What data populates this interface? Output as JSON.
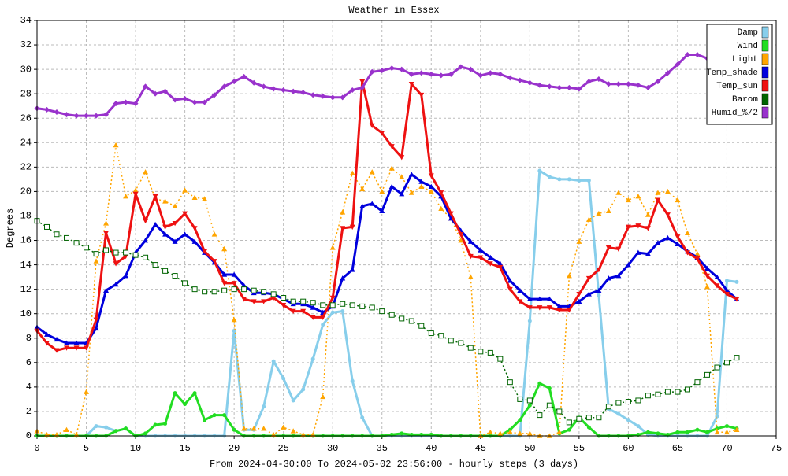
{
  "chart_data": {
    "type": "line",
    "title": "Weather in Essex",
    "x_label": "From 2024-04-30:00 To 2024-05-02 23:56:00 - hourly steps (3 days)",
    "y_label": "Degrees",
    "x": [
      0,
      1,
      2,
      3,
      4,
      5,
      6,
      7,
      8,
      9,
      10,
      11,
      12,
      13,
      14,
      15,
      16,
      17,
      18,
      19,
      20,
      21,
      22,
      23,
      24,
      25,
      26,
      27,
      28,
      29,
      30,
      31,
      32,
      33,
      34,
      35,
      36,
      37,
      38,
      39,
      40,
      41,
      42,
      43,
      44,
      45,
      46,
      47,
      48,
      49,
      50,
      51,
      52,
      53,
      54,
      55,
      56,
      57,
      58,
      59,
      60,
      61,
      62,
      63,
      64,
      65,
      66,
      67,
      68,
      69,
      70,
      71
    ],
    "xlim": [
      0,
      75
    ],
    "xticks": [
      0,
      5,
      10,
      15,
      20,
      25,
      30,
      35,
      40,
      45,
      50,
      55,
      60,
      65,
      70,
      75
    ],
    "ylim": [
      0,
      34
    ],
    "yticks": [
      0,
      2,
      4,
      6,
      8,
      10,
      12,
      14,
      16,
      18,
      20,
      22,
      24,
      26,
      28,
      30,
      32,
      34
    ],
    "grid": true,
    "legend": "top-right",
    "series": [
      {
        "name": "Damp",
        "color": "#87ceeb",
        "values": [
          0,
          0,
          0,
          0,
          0,
          0,
          0.8,
          0.7,
          0.4,
          0.6,
          0,
          0,
          0,
          0,
          0,
          0,
          0,
          0,
          0,
          0,
          8.6,
          0.5,
          0.5,
          2.4,
          6.1,
          4.7,
          2.9,
          3.8,
          6.3,
          9.1,
          10.1,
          10.2,
          4.5,
          1.5,
          0,
          0,
          0,
          0,
          0,
          0,
          0,
          0,
          0,
          0,
          0,
          0,
          0,
          0,
          0,
          0,
          9.4,
          21.7,
          21.2,
          21.0,
          21.0,
          20.9,
          20.9,
          11.5,
          2.2,
          1.8,
          1.3,
          0.8,
          0.1,
          0,
          0,
          0,
          0,
          0,
          0,
          1.6,
          12.7,
          12.6
        ]
      },
      {
        "name": "Wind",
        "color": "#22dd22",
        "values": [
          0,
          0,
          0,
          0,
          0,
          0,
          0,
          0,
          0.4,
          0.6,
          0,
          0.2,
          0.9,
          1.0,
          3.5,
          2.6,
          3.5,
          1.3,
          1.7,
          1.7,
          0.5,
          0,
          0,
          0,
          0,
          0,
          0,
          0,
          0,
          0,
          0,
          0,
          0,
          0,
          0,
          0,
          0.1,
          0.2,
          0.1,
          0.1,
          0.1,
          0,
          0,
          0,
          0,
          0,
          0,
          0,
          0.5,
          1.3,
          2.5,
          4.3,
          3.9,
          0.2,
          0.5,
          1.5,
          0.7,
          0,
          0,
          0,
          0,
          0.1,
          0.3,
          0.2,
          0.1,
          0.3,
          0.3,
          0.5,
          0.3,
          0.6,
          0.8,
          0.6
        ]
      },
      {
        "name": "Light",
        "color": "#ffa500",
        "values": [
          0.4,
          0.1,
          0.1,
          0.5,
          0.1,
          3.6,
          14.3,
          17.4,
          23.8,
          19.6,
          20.1,
          21.6,
          19.4,
          19.2,
          18.8,
          20.1,
          19.5,
          19.4,
          16.5,
          15.3,
          9.5,
          0.6,
          0.6,
          0.6,
          0.1,
          0.7,
          0.4,
          0.1,
          0.1,
          3.2,
          15.4,
          18.3,
          21.5,
          20.2,
          21.6,
          20.0,
          21.9,
          21.2,
          19.9,
          20.4,
          20.0,
          18.6,
          17.8,
          16.0,
          13.0,
          0.0,
          0.3,
          0.2,
          0.3,
          0.2,
          0.2,
          0.0,
          0.0,
          0.3,
          13.1,
          15.9,
          17.7,
          18.2,
          18.4,
          19.9,
          19.3,
          19.6,
          18.1,
          19.9,
          20.0,
          19.3,
          16.6,
          14.9,
          12.2,
          0.3,
          0.3,
          0.5
        ]
      },
      {
        "name": "Temp_shade",
        "color": "#0000dd",
        "values": [
          8.9,
          8.3,
          7.9,
          7.6,
          7.6,
          7.6,
          8.8,
          11.9,
          12.4,
          13.1,
          15.0,
          16.0,
          17.3,
          16.5,
          15.9,
          16.5,
          15.9,
          15.0,
          14.2,
          13.2,
          13.2,
          12.3,
          11.7,
          11.7,
          11.6,
          11.2,
          10.8,
          10.8,
          10.5,
          10.1,
          10.6,
          12.9,
          13.6,
          18.8,
          19.0,
          18.4,
          20.4,
          19.8,
          21.4,
          20.8,
          20.4,
          19.6,
          17.8,
          16.8,
          15.9,
          15.2,
          14.6,
          14.1,
          12.7,
          11.9,
          11.2,
          11.2,
          11.2,
          10.6,
          10.6,
          11.0,
          11.6,
          11.9,
          12.9,
          13.1,
          14.0,
          15.0,
          14.9,
          15.8,
          16.2,
          15.7,
          15.1,
          14.6,
          13.7,
          13.0,
          11.9,
          11.2
        ]
      },
      {
        "name": "Temp_sun",
        "color": "#ee1111",
        "values": [
          8.6,
          7.6,
          7.0,
          7.2,
          7.2,
          7.2,
          9.5,
          16.6,
          14.1,
          14.7,
          19.8,
          17.6,
          19.6,
          17.1,
          17.4,
          18.2,
          17.0,
          15.1,
          14.3,
          12.5,
          12.5,
          11.2,
          11.0,
          11.0,
          11.3,
          10.7,
          10.2,
          10.2,
          9.7,
          9.7,
          11.3,
          17.0,
          17.1,
          29.0,
          25.4,
          24.8,
          23.7,
          22.8,
          28.8,
          27.9,
          21.3,
          19.9,
          18.2,
          16.5,
          14.7,
          14.6,
          14.1,
          13.8,
          12.0,
          11.0,
          10.5,
          10.5,
          10.5,
          10.3,
          10.3,
          11.6,
          12.9,
          13.6,
          15.4,
          15.3,
          17.1,
          17.2,
          17.0,
          19.3,
          18.1,
          16.3,
          15.0,
          14.5,
          13.1,
          12.3,
          11.6,
          11.2
        ]
      },
      {
        "name": "Barom",
        "color": "#006400",
        "values": [
          17.6,
          17.1,
          16.5,
          16.2,
          15.8,
          15.4,
          14.9,
          15.2,
          15.0,
          15.0,
          14.8,
          14.6,
          14.0,
          13.5,
          13.1,
          12.5,
          12.0,
          11.8,
          11.8,
          11.9,
          12.0,
          12.0,
          11.9,
          11.8,
          11.6,
          11.3,
          11.0,
          11.0,
          10.9,
          10.7,
          10.7,
          10.8,
          10.7,
          10.6,
          10.5,
          10.2,
          9.9,
          9.6,
          9.4,
          9.0,
          8.4,
          8.2,
          7.8,
          7.6,
          7.2,
          6.9,
          6.8,
          6.3,
          4.4,
          3.0,
          2.9,
          1.7,
          2.5,
          2.0,
          1.1,
          1.4,
          1.5,
          1.5,
          2.4,
          2.7,
          2.8,
          2.9,
          3.3,
          3.4,
          3.6,
          3.6,
          3.8,
          4.4,
          5.0,
          5.6,
          6.0,
          6.4
        ]
      },
      {
        "name": "Humid_%/2",
        "color": "#9932cc",
        "values": [
          26.8,
          26.7,
          26.5,
          26.3,
          26.2,
          26.2,
          26.2,
          26.3,
          27.2,
          27.3,
          27.2,
          28.6,
          28.0,
          28.2,
          27.5,
          27.6,
          27.3,
          27.3,
          27.9,
          28.6,
          29.0,
          29.4,
          28.9,
          28.6,
          28.4,
          28.3,
          28.2,
          28.1,
          27.9,
          27.8,
          27.7,
          27.7,
          28.3,
          28.5,
          29.8,
          29.9,
          30.1,
          30.0,
          29.6,
          29.7,
          29.6,
          29.5,
          29.6,
          30.2,
          30.0,
          29.5,
          29.7,
          29.6,
          29.3,
          29.1,
          28.9,
          28.7,
          28.6,
          28.5,
          28.5,
          28.4,
          29.0,
          29.2,
          28.8,
          28.8,
          28.8,
          28.7,
          28.5,
          29.0,
          29.7,
          30.4,
          31.2,
          31.2,
          30.9,
          null,
          null,
          null
        ]
      }
    ]
  }
}
